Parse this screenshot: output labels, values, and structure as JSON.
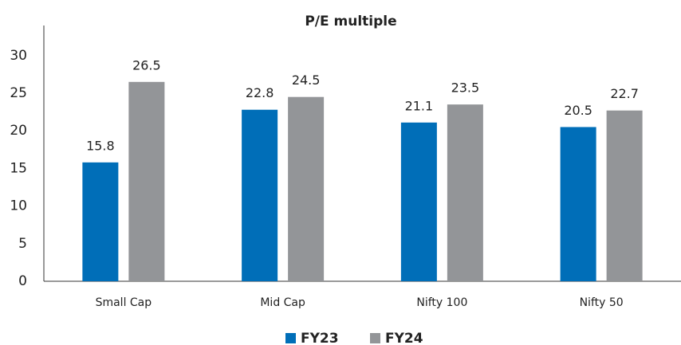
{
  "chart_data": {
    "type": "bar",
    "title": "P/E multiple",
    "categories": [
      "Small Cap",
      "Mid Cap",
      "Nifty 100",
      "Nifty 50"
    ],
    "series": [
      {
        "name": "FY23",
        "color": "#006eb8",
        "values": [
          15.8,
          22.8,
          21.1,
          20.5
        ]
      },
      {
        "name": "FY24",
        "color": "#939598",
        "values": [
          26.5,
          24.5,
          23.5,
          22.7
        ]
      }
    ],
    "ylim": [
      0,
      34
    ],
    "yticks": [
      0,
      5,
      10,
      15,
      20,
      25,
      30
    ],
    "grid": false,
    "legend": "bottom"
  }
}
